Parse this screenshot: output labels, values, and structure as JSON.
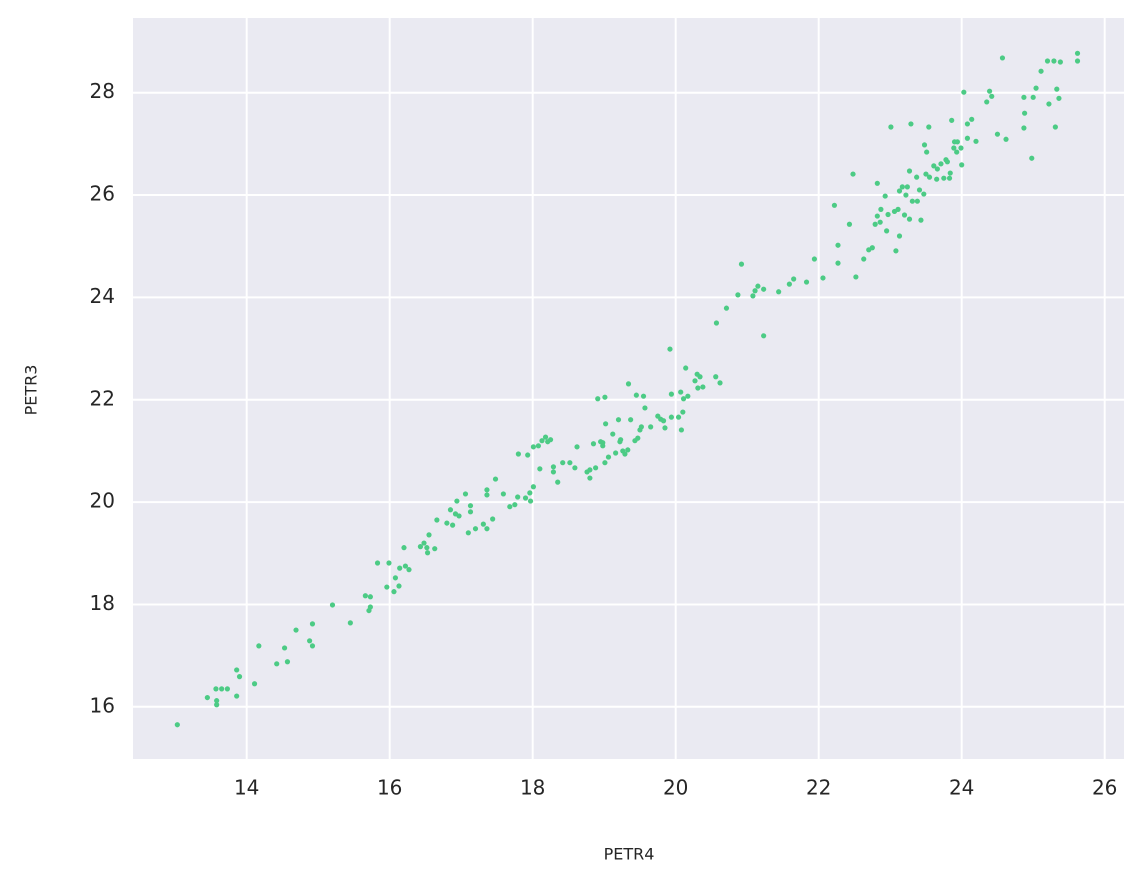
{
  "chart_data": {
    "type": "scatter",
    "xlabel": "PETR4",
    "ylabel": "PETR3",
    "color": "#4ccb85",
    "grid": true,
    "xlim": [
      12.41,
      26.27
    ],
    "ylim": [
      14.98,
      29.46
    ],
    "xticks": [
      14,
      16,
      18,
      20,
      22,
      24,
      26
    ],
    "yticks": [
      16,
      18,
      20,
      22,
      24,
      26,
      28
    ],
    "x": [
      13.03,
      13.45,
      13.57,
      13.58,
      13.58,
      13.65,
      13.73,
      13.86,
      13.9,
      13.86,
      14.11,
      14.17,
      14.42,
      14.53,
      14.57,
      14.69,
      14.88,
      14.92,
      14.92,
      15.2,
      15.45,
      15.66,
      15.73,
      15.71,
      15.73,
      15.83,
      15.99,
      15.96,
      16.06,
      16.08,
      16.13,
      16.14,
      16.2,
      16.22,
      16.27,
      16.43,
      16.48,
      16.52,
      16.55,
      16.53,
      16.63,
      16.66,
      16.8,
      16.85,
      16.88,
      16.92,
      16.97,
      16.94,
      17.06,
      17.1,
      17.13,
      17.13,
      17.2,
      17.31,
      17.36,
      17.36,
      17.36,
      17.44,
      17.48,
      17.59,
      17.68,
      17.75,
      17.79,
      17.8,
      17.9,
      17.93,
      17.96,
      17.97,
      18.01,
      18.01,
      18.08,
      18.1,
      18.13,
      18.18,
      18.21,
      18.25,
      18.29,
      18.29,
      18.35,
      18.42,
      18.52,
      18.59,
      18.62,
      18.76,
      18.8,
      18.8,
      18.85,
      18.88,
      18.91,
      18.95,
      18.98,
      18.98,
      19.01,
      19.01,
      19.02,
      19.06,
      19.12,
      19.16,
      19.2,
      19.22,
      19.23,
      19.26,
      19.29,
      19.34,
      19.33,
      19.37,
      19.43,
      19.45,
      19.47,
      19.5,
      19.52,
      19.55,
      19.57,
      19.65,
      19.75,
      19.79,
      19.83,
      19.85,
      19.92,
      19.94,
      19.94,
      20.04,
      20.07,
      20.08,
      20.1,
      20.11,
      20.14,
      20.17,
      20.27,
      20.3,
      20.31,
      20.34,
      20.38,
      20.56,
      20.62,
      20.57,
      20.71,
      20.87,
      20.92,
      21.08,
      21.11,
      21.15,
      21.23,
      21.23,
      21.44,
      21.59,
      21.65,
      21.83,
      21.94,
      22.06,
      22.22,
      22.27,
      22.27,
      22.43,
      22.48,
      22.52,
      22.63,
      22.7,
      22.75,
      22.79,
      22.82,
      22.82,
      22.86,
      22.87,
      22.93,
      22.95,
      22.97,
      23.01,
      23.06,
      23.08,
      23.11,
      23.13,
      23.13,
      23.17,
      23.2,
      23.22,
      23.24,
      23.27,
      23.29,
      23.27,
      23.31,
      23.37,
      23.38,
      23.41,
      23.43,
      23.47,
      23.48,
      23.5,
      23.51,
      23.54,
      23.55,
      23.61,
      23.65,
      23.66,
      23.71,
      23.75,
      23.78,
      23.8,
      23.83,
      23.84,
      23.86,
      23.89,
      23.9,
      23.93,
      23.94,
      23.99,
      24.0,
      24.03,
      24.08,
      24.08,
      24.14,
      24.2,
      24.35,
      24.39,
      24.42,
      24.5,
      24.57,
      24.62,
      24.87,
      24.87,
      24.88,
      24.98,
      25.0,
      25.04,
      25.11,
      25.2,
      25.22,
      25.29,
      25.31,
      25.33,
      25.36,
      25.38,
      25.62,
      25.62
    ],
    "y": [
      15.65,
      16.18,
      16.35,
      16.12,
      16.04,
      16.35,
      16.35,
      16.72,
      16.59,
      16.21,
      16.45,
      17.19,
      16.84,
      17.15,
      16.88,
      17.5,
      17.29,
      17.62,
      17.19,
      17.99,
      17.64,
      18.17,
      18.15,
      17.88,
      17.95,
      18.81,
      18.81,
      18.34,
      18.25,
      18.52,
      18.36,
      18.71,
      19.11,
      18.75,
      18.68,
      19.13,
      19.2,
      19.11,
      19.36,
      19.01,
      19.09,
      19.65,
      19.59,
      19.85,
      19.55,
      19.77,
      19.73,
      20.02,
      20.16,
      19.4,
      19.93,
      19.81,
      19.48,
      19.57,
      20.14,
      20.24,
      19.48,
      19.67,
      20.45,
      20.16,
      19.91,
      19.95,
      20.1,
      20.94,
      20.08,
      20.92,
      20.18,
      20.02,
      20.3,
      21.08,
      21.1,
      20.65,
      21.2,
      21.27,
      21.18,
      21.22,
      20.69,
      20.59,
      20.39,
      20.77,
      20.77,
      20.67,
      21.08,
      20.59,
      20.63,
      20.47,
      21.14,
      20.67,
      22.02,
      21.18,
      21.16,
      21.1,
      22.05,
      20.77,
      21.53,
      20.88,
      21.33,
      20.96,
      21.61,
      21.18,
      21.22,
      21.0,
      20.94,
      22.31,
      21.02,
      21.61,
      21.2,
      22.09,
      21.25,
      21.41,
      21.47,
      22.07,
      21.84,
      21.47,
      21.68,
      21.62,
      21.59,
      21.45,
      22.99,
      22.11,
      21.66,
      21.66,
      22.15,
      21.41,
      21.76,
      22.02,
      22.62,
      22.07,
      22.37,
      22.5,
      22.23,
      22.45,
      22.25,
      22.45,
      22.33,
      23.5,
      23.79,
      24.05,
      24.65,
      24.03,
      24.13,
      24.22,
      24.16,
      23.25,
      24.11,
      24.26,
      24.36,
      24.3,
      24.75,
      24.38,
      25.8,
      24.67,
      25.02,
      25.43,
      26.41,
      24.4,
      24.75,
      24.93,
      24.97,
      25.43,
      25.59,
      26.23,
      25.47,
      25.72,
      25.98,
      25.3,
      25.62,
      27.33,
      25.68,
      24.91,
      25.72,
      25.2,
      26.08,
      26.16,
      25.61,
      26.0,
      26.16,
      26.47,
      27.39,
      25.53,
      25.88,
      26.35,
      25.88,
      26.1,
      25.51,
      26.02,
      26.98,
      26.41,
      26.84,
      27.33,
      26.35,
      26.57,
      26.31,
      26.51,
      26.61,
      26.33,
      26.69,
      26.65,
      26.33,
      26.43,
      27.46,
      26.92,
      27.04,
      26.84,
      27.04,
      26.92,
      26.59,
      28.01,
      27.39,
      27.11,
      27.48,
      27.05,
      27.82,
      28.03,
      27.93,
      27.19,
      28.68,
      27.09,
      27.91,
      27.31,
      27.6,
      26.72,
      27.91,
      28.09,
      28.42,
      28.62,
      27.78,
      28.62,
      27.33,
      28.07,
      27.89,
      28.6,
      28.77,
      28.62
    ]
  }
}
